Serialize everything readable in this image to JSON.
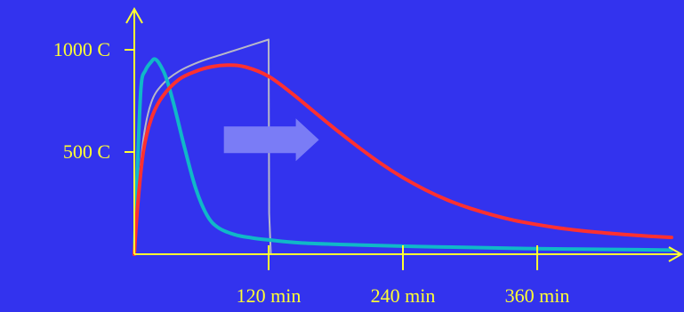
{
  "colors": {
    "background": "#3333ee",
    "axis": "#ffff33",
    "text": "#ffff33",
    "red_curve": "#ff3030",
    "teal_curve": "#10b8c8",
    "gray_curve": "#b8b8c8",
    "arrow": "#7a7cf6"
  },
  "chart_data": {
    "type": "line",
    "title": "",
    "xlabel": "",
    "ylabel": "",
    "x_unit": "min",
    "y_unit": "C",
    "xlim": [
      0,
      480
    ],
    "ylim": [
      0,
      1200
    ],
    "x_ticks": [
      {
        "value": 120,
        "label": "120 min"
      },
      {
        "value": 240,
        "label": "240 min"
      },
      {
        "value": 360,
        "label": "360 min"
      }
    ],
    "y_ticks": [
      {
        "value": 500,
        "label": "500 C"
      },
      {
        "value": 1000,
        "label": "1000 C"
      }
    ],
    "grid": false,
    "legend": "none",
    "annotation": {
      "type": "right-arrow",
      "from_x": 80,
      "to_x": 165,
      "y": 560
    },
    "series": [
      {
        "color_key": "gray_curve",
        "x": [
          0,
          3,
          8,
          15,
          25,
          40,
          60,
          80,
          100,
          120,
          120.5,
          122
        ],
        "y": [
          0,
          260,
          560,
          740,
          830,
          895,
          945,
          980,
          1015,
          1050,
          200,
          0
        ]
      },
      {
        "color_key": "teal_curve",
        "x": [
          0,
          3,
          6,
          10,
          15,
          18,
          22,
          28,
          35,
          45,
          55,
          65,
          75,
          90,
          105,
          120,
          150,
          200,
          250,
          300,
          350,
          400,
          450,
          480
        ],
        "y": [
          0,
          450,
          820,
          900,
          940,
          955,
          935,
          870,
          740,
          520,
          320,
          190,
          130,
          95,
          80,
          70,
          55,
          45,
          38,
          33,
          28,
          25,
          22,
          20
        ]
      },
      {
        "color_key": "red_curve",
        "x": [
          0,
          3,
          8,
          15,
          25,
          40,
          55,
          70,
          85,
          100,
          120,
          140,
          160,
          180,
          200,
          220,
          240,
          260,
          280,
          300,
          320,
          340,
          360,
          380,
          400,
          430,
          460,
          480
        ],
        "y": [
          0,
          240,
          500,
          660,
          770,
          855,
          895,
          918,
          925,
          915,
          870,
          790,
          700,
          610,
          525,
          445,
          375,
          315,
          265,
          225,
          192,
          165,
          145,
          128,
          115,
          100,
          88,
          82
        ]
      }
    ]
  }
}
